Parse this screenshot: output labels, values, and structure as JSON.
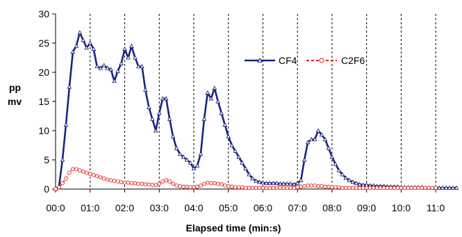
{
  "chart_data": {
    "type": "line",
    "title": "",
    "xlabel": "Elapsed time (min:s)",
    "ylabel": "pp mv",
    "ylabel_lines": [
      "pp",
      "mv"
    ],
    "x_unit": "minutes",
    "xlim": [
      0,
      11.6
    ],
    "ylim": [
      0,
      30
    ],
    "yticks": [
      0,
      5,
      10,
      15,
      20,
      25,
      30
    ],
    "xticks": [
      {
        "value": 0,
        "label": "00:0"
      },
      {
        "value": 1,
        "label": "01:0"
      },
      {
        "value": 2,
        "label": "02:0"
      },
      {
        "value": 3,
        "label": "03:0"
      },
      {
        "value": 4,
        "label": "04:0"
      },
      {
        "value": 5,
        "label": "05:0"
      },
      {
        "value": 6,
        "label": "06:0"
      },
      {
        "value": 7,
        "label": "07:0"
      },
      {
        "value": 8,
        "label": "08:0"
      },
      {
        "value": 9,
        "label": "09:0"
      },
      {
        "value": 10,
        "label": "10:0"
      },
      {
        "value": 11,
        "label": "11:0"
      }
    ],
    "grid": "vertical-dashed",
    "legend_position": "upper-right",
    "series": [
      {
        "name": "CF4",
        "color": "#1a237e",
        "marker": "triangle",
        "line_style": "solid",
        "x": [
          0.0,
          0.1,
          0.2,
          0.3,
          0.4,
          0.5,
          0.6,
          0.7,
          0.8,
          0.9,
          1.0,
          1.1,
          1.2,
          1.3,
          1.4,
          1.5,
          1.6,
          1.7,
          1.8,
          1.9,
          2.0,
          2.1,
          2.2,
          2.3,
          2.4,
          2.5,
          2.6,
          2.7,
          2.8,
          2.9,
          3.0,
          3.1,
          3.2,
          3.3,
          3.4,
          3.5,
          3.6,
          3.7,
          3.8,
          3.9,
          4.0,
          4.1,
          4.2,
          4.3,
          4.4,
          4.5,
          4.6,
          4.7,
          4.8,
          4.9,
          5.0,
          5.1,
          5.2,
          5.3,
          5.4,
          5.5,
          5.6,
          5.7,
          5.8,
          5.9,
          6.0,
          6.1,
          6.2,
          6.3,
          6.4,
          6.5,
          6.6,
          6.7,
          6.8,
          6.9,
          7.0,
          7.1,
          7.2,
          7.3,
          7.4,
          7.5,
          7.6,
          7.7,
          7.8,
          7.9,
          8.0,
          8.1,
          8.2,
          8.3,
          8.4,
          8.5,
          8.6,
          8.7,
          8.8,
          8.9,
          9.0,
          9.1,
          9.2,
          9.3,
          9.4,
          9.5,
          9.6,
          9.7,
          9.8,
          9.9,
          10.0,
          10.1,
          10.2,
          10.3,
          10.4,
          10.5,
          10.6,
          10.7,
          10.8,
          10.9,
          11.0,
          11.1,
          11.2,
          11.3,
          11.4,
          11.5,
          11.6
        ],
        "y": [
          0.0,
          0.5,
          5,
          11,
          17.5,
          23.5,
          24.5,
          26.8,
          25.5,
          24.2,
          25,
          24,
          21,
          20.7,
          21.2,
          20.7,
          20.5,
          18.5,
          20.2,
          21.5,
          24,
          22.5,
          24.5,
          22.5,
          21,
          21,
          17,
          14,
          12,
          10,
          13,
          15.5,
          15.5,
          12,
          9,
          7,
          6,
          5.5,
          5,
          4.5,
          3.5,
          4,
          6,
          12,
          16.5,
          15.5,
          17.3,
          15,
          13,
          11,
          9,
          7.5,
          6.5,
          5.5,
          4.5,
          3.5,
          2.5,
          1.8,
          1.4,
          1.2,
          1.1,
          1.0,
          1.0,
          1.0,
          1.0,
          0.9,
          0.9,
          0.9,
          0.9,
          0.8,
          1.0,
          1.5,
          5,
          8,
          8.5,
          8.5,
          10,
          9.3,
          8.5,
          7,
          5.5,
          4.3,
          3.2,
          2.5,
          1.9,
          1.5,
          1.2,
          1.0,
          0.8,
          0.7,
          0.7,
          0.6,
          0.6,
          0.5,
          0.5,
          0.5,
          0.4,
          0.4,
          0.4,
          0.4,
          0.3,
          0.3,
          0.3,
          0.3,
          0.3,
          0.3,
          0.3,
          0.2,
          0.2,
          0.2,
          0.2,
          0.2,
          0.2,
          0.2,
          0.2,
          0.2,
          0.2
        ]
      },
      {
        "name": "C2F6",
        "color": "#e32119",
        "marker": "circle",
        "line_style": "dashed",
        "x": [
          0.0,
          0.1,
          0.2,
          0.3,
          0.4,
          0.5,
          0.6,
          0.7,
          0.8,
          0.9,
          1.0,
          1.1,
          1.2,
          1.3,
          1.4,
          1.5,
          1.6,
          1.7,
          1.8,
          1.9,
          2.0,
          2.1,
          2.2,
          2.3,
          2.4,
          2.5,
          2.6,
          2.7,
          2.8,
          2.9,
          3.0,
          3.1,
          3.2,
          3.3,
          3.4,
          3.5,
          3.6,
          3.7,
          3.8,
          3.9,
          4.0,
          4.1,
          4.2,
          4.3,
          4.4,
          4.5,
          4.6,
          4.7,
          4.8,
          4.9,
          5.0,
          5.1,
          5.2,
          5.3,
          5.4,
          5.5,
          5.6,
          5.7,
          5.8,
          5.9,
          6.0,
          6.1,
          6.2,
          6.3,
          6.4,
          6.5,
          6.6,
          6.7,
          6.8,
          6.9,
          7.0,
          7.1,
          7.2,
          7.3,
          7.4,
          7.5,
          7.6,
          7.7,
          7.8,
          7.9,
          8.0,
          8.1,
          8.2,
          8.3,
          8.4,
          8.5,
          8.6,
          8.7,
          8.8,
          8.9,
          9.0,
          9.1,
          9.2,
          9.3,
          9.4,
          9.5,
          9.6,
          9.7,
          9.8,
          9.9,
          10.0,
          10.1,
          10.2,
          10.3,
          10.4,
          10.5,
          10.6,
          10.7,
          10.8,
          10.9,
          11.0
        ],
        "y": [
          0.0,
          0.3,
          1.0,
          1.8,
          2.8,
          3.4,
          3.4,
          3.2,
          3.0,
          2.8,
          2.6,
          2.4,
          2.2,
          2.0,
          1.8,
          1.6,
          1.5,
          1.4,
          1.3,
          1.2,
          1.1,
          1.1,
          1.0,
          1.0,
          0.9,
          0.9,
          0.8,
          0.8,
          0.7,
          0.7,
          0.9,
          1.3,
          1.5,
          1.3,
          0.9,
          0.6,
          0.5,
          0.4,
          0.4,
          0.3,
          0.3,
          0.4,
          0.6,
          0.9,
          1.1,
          1.0,
          1.0,
          0.9,
          0.8,
          0.6,
          0.5,
          0.4,
          0.3,
          0.3,
          0.3,
          0.2,
          0.2,
          0.2,
          0.2,
          0.2,
          0.2,
          0.2,
          0.2,
          0.2,
          0.2,
          0.2,
          0.2,
          0.2,
          0.2,
          0.2,
          0.3,
          0.4,
          0.5,
          0.6,
          0.6,
          0.6,
          0.5,
          0.5,
          0.4,
          0.4,
          0.3,
          0.3,
          0.3,
          0.2,
          0.2,
          0.2,
          0.2,
          0.2,
          0.2,
          0.2,
          0.2,
          0.2,
          0.2,
          0.2,
          0.2,
          0.2,
          0.2,
          0.2,
          0.2,
          0.2,
          0.2,
          0.2,
          0.2,
          0.2,
          0.2,
          0.2,
          0.2,
          0.2,
          0.2,
          0.2,
          0.2
        ]
      }
    ]
  }
}
